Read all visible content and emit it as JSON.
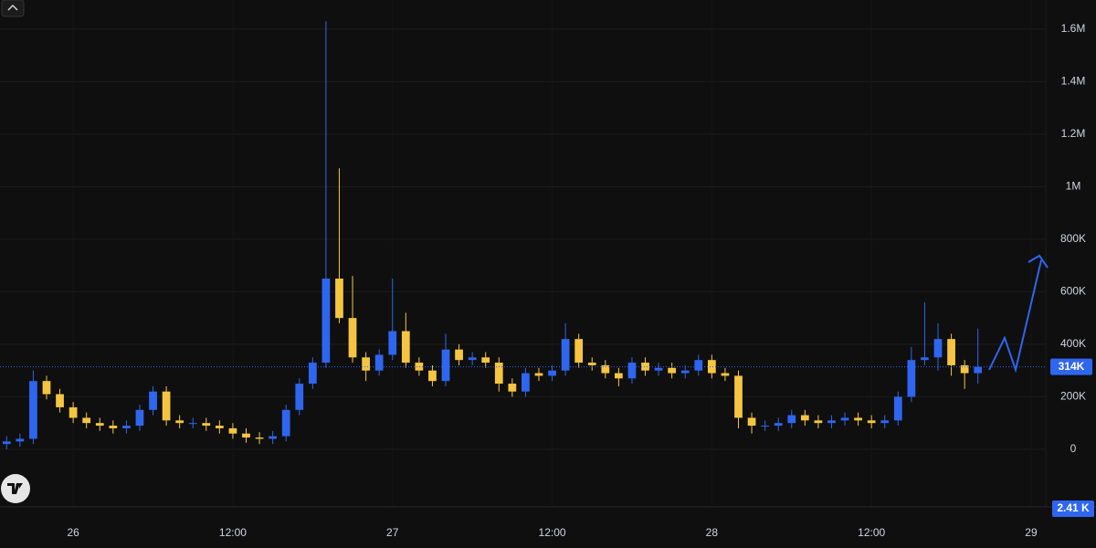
{
  "chart_data": {
    "type": "candlestick",
    "up_color": "#2f66f0",
    "down_color": "#f5c542",
    "x": [
      -5,
      -4,
      -3,
      -2,
      -1,
      0,
      1,
      2,
      3,
      4,
      5,
      6,
      7,
      8,
      9,
      10,
      11,
      12,
      13,
      14,
      15,
      16,
      17,
      18,
      19,
      20,
      21,
      22,
      23,
      24,
      25,
      26,
      27,
      28,
      29,
      30,
      31,
      32,
      33,
      34,
      35,
      36,
      37,
      38,
      39,
      40,
      41,
      42,
      43,
      44,
      45,
      46,
      47,
      48,
      49,
      50,
      51,
      52,
      53,
      54,
      55,
      56,
      57,
      58,
      59,
      60,
      61,
      62,
      63,
      64,
      65,
      66,
      67,
      68
    ],
    "open": [
      20000,
      30000,
      40000,
      260000,
      210000,
      160000,
      120000,
      100000,
      90000,
      80000,
      90000,
      150000,
      220000,
      110000,
      100000,
      100000,
      90000,
      80000,
      60000,
      45000,
      40000,
      50000,
      150000,
      250000,
      330000,
      650000,
      500000,
      350000,
      300000,
      360000,
      450000,
      330000,
      300000,
      260000,
      380000,
      340000,
      350000,
      330000,
      250000,
      220000,
      290000,
      280000,
      300000,
      420000,
      330000,
      320000,
      290000,
      270000,
      330000,
      300000,
      310000,
      290000,
      300000,
      340000,
      290000,
      280000,
      120000,
      90000,
      90000,
      100000,
      130000,
      110000,
      100000,
      110000,
      120000,
      110000,
      100000,
      110000,
      200000,
      340000,
      350000,
      420000,
      320000,
      290000
    ],
    "high": [
      50000,
      60000,
      300000,
      280000,
      230000,
      180000,
      140000,
      120000,
      110000,
      110000,
      170000,
      240000,
      240000,
      130000,
      120000,
      120000,
      110000,
      100000,
      80000,
      65000,
      70000,
      170000,
      270000,
      350000,
      1630000,
      1070000,
      660000,
      370000,
      380000,
      650000,
      520000,
      350000,
      320000,
      440000,
      400000,
      370000,
      370000,
      350000,
      270000,
      310000,
      310000,
      320000,
      480000,
      440000,
      350000,
      340000,
      310000,
      350000,
      350000,
      330000,
      330000,
      320000,
      360000,
      360000,
      310000,
      300000,
      140000,
      110000,
      120000,
      150000,
      150000,
      130000,
      130000,
      140000,
      140000,
      130000,
      130000,
      220000,
      390000,
      560000,
      480000,
      440000,
      340000,
      460000
    ],
    "low": [
      0,
      10000,
      20000,
      190000,
      140000,
      100000,
      80000,
      70000,
      60000,
      60000,
      70000,
      130000,
      90000,
      80000,
      80000,
      70000,
      60000,
      40000,
      25000,
      20000,
      20000,
      30000,
      130000,
      230000,
      310000,
      480000,
      330000,
      260000,
      280000,
      340000,
      310000,
      280000,
      240000,
      240000,
      320000,
      320000,
      310000,
      220000,
      200000,
      200000,
      260000,
      260000,
      280000,
      310000,
      300000,
      270000,
      240000,
      250000,
      280000,
      280000,
      270000,
      270000,
      280000,
      270000,
      260000,
      80000,
      60000,
      70000,
      70000,
      80000,
      90000,
      80000,
      80000,
      90000,
      90000,
      80000,
      80000,
      90000,
      180000,
      320000,
      300000,
      280000,
      230000,
      250000
    ],
    "close": [
      30000,
      40000,
      260000,
      210000,
      160000,
      120000,
      100000,
      90000,
      80000,
      90000,
      150000,
      220000,
      110000,
      100000,
      100000,
      90000,
      80000,
      60000,
      45000,
      40000,
      50000,
      150000,
      250000,
      330000,
      650000,
      500000,
      350000,
      300000,
      360000,
      450000,
      330000,
      300000,
      260000,
      380000,
      340000,
      350000,
      330000,
      250000,
      220000,
      290000,
      280000,
      300000,
      420000,
      330000,
      320000,
      290000,
      270000,
      330000,
      300000,
      310000,
      290000,
      300000,
      340000,
      290000,
      280000,
      120000,
      90000,
      90000,
      100000,
      130000,
      110000,
      100000,
      110000,
      120000,
      110000,
      100000,
      110000,
      200000,
      340000,
      350000,
      420000,
      320000,
      290000,
      314000
    ],
    "xlim": [
      -5.5,
      73.1
    ],
    "xticks": [
      {
        "value": 0,
        "label": "26"
      },
      {
        "value": 12,
        "label": "12:00"
      },
      {
        "value": 24,
        "label": "27"
      },
      {
        "value": 36,
        "label": "12:00"
      },
      {
        "value": 48,
        "label": "28"
      },
      {
        "value": 60,
        "label": "12:00"
      },
      {
        "value": 72,
        "label": "29"
      }
    ],
    "ylim": [
      -195000,
      1711000
    ],
    "yticks": [
      0,
      {
        "value": 200000,
        "label": "200K"
      },
      {
        "value": 400000,
        "label": "400K"
      },
      {
        "value": 600000,
        "label": "600K"
      },
      {
        "value": 800000,
        "label": "800K"
      },
      {
        "value": 1000000,
        "label": "1M"
      },
      {
        "value": 1200000,
        "label": "1.2M"
      },
      {
        "value": 1400000,
        "label": "1.4M"
      },
      {
        "value": 1600000,
        "label": "1.6M"
      }
    ],
    "grid": true,
    "last_price": {
      "value": 314000,
      "label": "314K"
    },
    "volume_label": "2.41 K"
  }
}
